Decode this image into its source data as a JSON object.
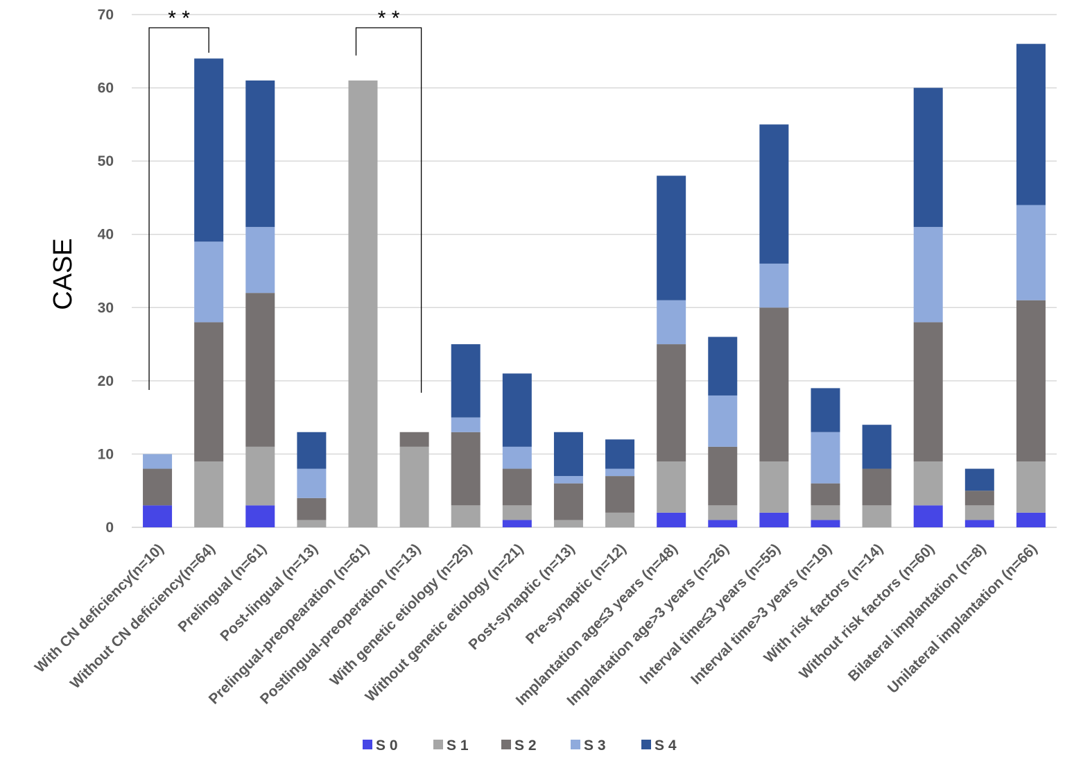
{
  "chart_data": {
    "type": "bar",
    "stacked": true,
    "title": "",
    "xlabel": "",
    "ylabel": "CASE",
    "ylim": [
      0,
      70
    ],
    "yticks": [
      0,
      10,
      20,
      30,
      40,
      50,
      60,
      70
    ],
    "grid": true,
    "legend_position": "bottom",
    "categories": [
      "With CN deficiency(n=10)",
      "Without  CN deficiency(n=64)",
      "Prelingual (n=61)",
      "Post-lingual (n=13)",
      "Prelingual-preopearation  (n=61)",
      "Postlingual-preoperation  (n=13)",
      "With genetic etiology  (n=25)",
      "Without genetic etiology  (n=21)",
      "Post-synaptic   (n=13)",
      "Pre-synaptic   (n=12)",
      "Implantation age≤3 years (n=48)",
      "Implantation age>3 years (n=26)",
      "Interval time≤3 years (n=55)",
      "Interval time>3 years (n=19)",
      "With risk factors  (n=14)",
      "Without risk factors  (n=60)",
      "Bilateral implantation  (n=8)",
      "Unilateral implantation  (n=66)"
    ],
    "series": [
      {
        "name": "S 0",
        "color": "#4646e6",
        "values": [
          3,
          0,
          3,
          0,
          0,
          0,
          0,
          1,
          0,
          0,
          2,
          1,
          2,
          1,
          0,
          3,
          1,
          2
        ]
      },
      {
        "name": "S 1",
        "color": "#a6a6a6",
        "values": [
          0,
          9,
          8,
          1,
          61,
          11,
          3,
          2,
          1,
          2,
          7,
          2,
          7,
          2,
          3,
          6,
          2,
          7
        ]
      },
      {
        "name": "S 2",
        "color": "#767171",
        "values": [
          5,
          19,
          21,
          3,
          0,
          2,
          10,
          5,
          5,
          5,
          16,
          8,
          21,
          3,
          5,
          19,
          2,
          22
        ]
      },
      {
        "name": "S 3",
        "color": "#8faadc",
        "values": [
          2,
          11,
          9,
          4,
          0,
          0,
          2,
          3,
          1,
          1,
          6,
          7,
          6,
          7,
          0,
          13,
          0,
          13
        ]
      },
      {
        "name": "S 4",
        "color": "#2f5597",
        "values": [
          0,
          25,
          20,
          5,
          0,
          0,
          10,
          10,
          6,
          4,
          17,
          8,
          19,
          6,
          6,
          19,
          3,
          22
        ]
      }
    ],
    "annotations": [
      {
        "label": "* *",
        "from_category": 0,
        "to_category": 1
      },
      {
        "label": "* *",
        "from_category": 4,
        "to_category": 5
      }
    ]
  }
}
